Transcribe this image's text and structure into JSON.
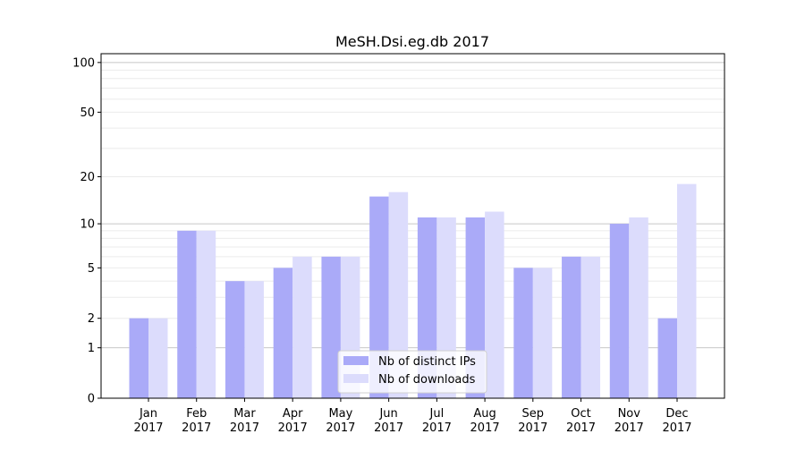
{
  "chart_data": {
    "type": "bar",
    "title": "MeSH.Dsi.eg.db 2017",
    "xlabel": "",
    "ylabel": "",
    "yscale": "log(1+y)",
    "ylim": [
      0,
      113
    ],
    "yticks": [
      0,
      1,
      2,
      5,
      10,
      20,
      50,
      100
    ],
    "grid": true,
    "legend_position": "bottom-center",
    "categories": [
      "Jan\n2017",
      "Feb\n2017",
      "Mar\n2017",
      "Apr\n2017",
      "May\n2017",
      "Jun\n2017",
      "Jul\n2017",
      "Aug\n2017",
      "Sep\n2017",
      "Oct\n2017",
      "Nov\n2017",
      "Dec\n2017"
    ],
    "series": [
      {
        "name": "Nb of distinct IPs",
        "color": "#aaaaf8",
        "values": [
          2,
          9,
          4,
          5,
          6,
          15,
          11,
          11,
          5,
          6,
          10,
          2
        ]
      },
      {
        "name": "Nb of downloads",
        "color": "#dcdcfc",
        "values": [
          2,
          9,
          4,
          6,
          6,
          16,
          11,
          12,
          5,
          6,
          11,
          18
        ]
      }
    ]
  }
}
